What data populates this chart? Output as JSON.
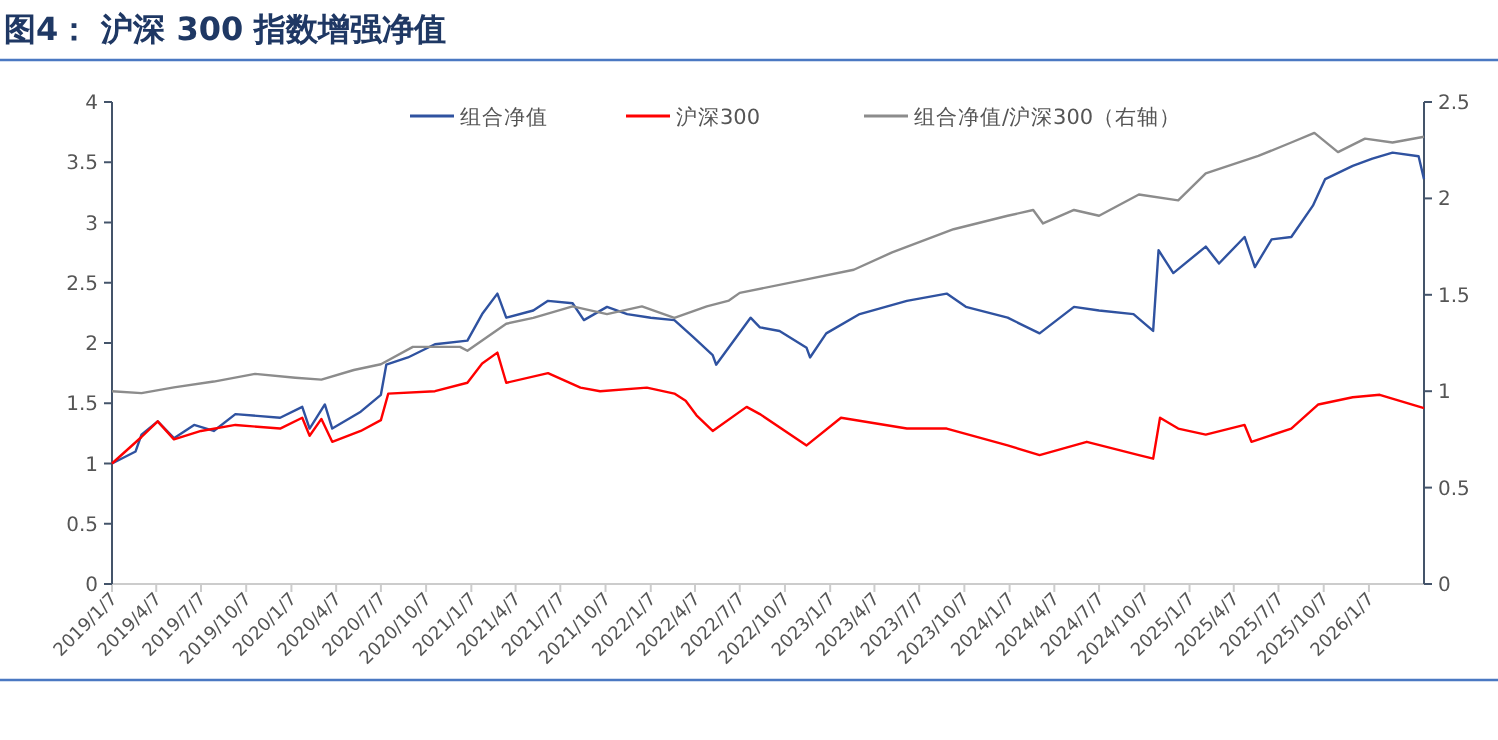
{
  "chart_data": {
    "type": "line",
    "title": "图4： 沪深 300 指数增强净值",
    "legend": "top",
    "grid": false,
    "xlim": [
      "2019-01-07",
      "2026-04-29"
    ],
    "xticks": [
      {
        "value": "2019-01-07",
        "label": "2019/1/7"
      },
      {
        "value": "2019-04-07",
        "label": "2019/4/7"
      },
      {
        "value": "2019-07-07",
        "label": "2019/7/7"
      },
      {
        "value": "2019-10-07",
        "label": "2019/10/7"
      },
      {
        "value": "2020-01-07",
        "label": "2020/1/7"
      },
      {
        "value": "2020-04-07",
        "label": "2020/4/7"
      },
      {
        "value": "2020-07-07",
        "label": "2020/7/7"
      },
      {
        "value": "2020-10-07",
        "label": "2020/10/7"
      },
      {
        "value": "2021-01-07",
        "label": "2021/1/7"
      },
      {
        "value": "2021-04-07",
        "label": "2021/4/7"
      },
      {
        "value": "2021-07-07",
        "label": "2021/7/7"
      },
      {
        "value": "2021-10-07",
        "label": "2021/10/7"
      },
      {
        "value": "2022-01-07",
        "label": "2022/1/7"
      },
      {
        "value": "2022-04-07",
        "label": "2022/4/7"
      },
      {
        "value": "2022-07-07",
        "label": "2022/7/7"
      },
      {
        "value": "2022-10-07",
        "label": "2022/10/7"
      },
      {
        "value": "2023-01-07",
        "label": "2023/1/7"
      },
      {
        "value": "2023-04-07",
        "label": "2023/4/7"
      },
      {
        "value": "2023-07-07",
        "label": "2023/7/7"
      },
      {
        "value": "2023-10-07",
        "label": "2023/10/7"
      },
      {
        "value": "2024-01-07",
        "label": "2024/1/7"
      },
      {
        "value": "2024-04-07",
        "label": "2024/4/7"
      },
      {
        "value": "2024-07-07",
        "label": "2024/7/7"
      },
      {
        "value": "2024-10-07",
        "label": "2024/10/7"
      },
      {
        "value": "2025-01-07",
        "label": "2025/1/7"
      },
      {
        "value": "2025-04-07",
        "label": "2025/4/7"
      },
      {
        "value": "2025-07-07",
        "label": "2025/7/7"
      },
      {
        "value": "2025-10-07",
        "label": "2025/10/7"
      },
      {
        "value": "2026-01-07",
        "label": "2026/1/7"
      }
    ],
    "ylim": [
      0,
      4
    ],
    "yticks": [
      0,
      0.5,
      1,
      1.5,
      2,
      2.5,
      3,
      3.5,
      4
    ],
    "y2lim": [
      0,
      2.5
    ],
    "y2ticks": [
      0,
      0.5,
      1,
      1.5,
      2,
      2.5
    ],
    "series": [
      {
        "name": "组合净值",
        "color": "#2f52a0",
        "x": [
          "2019-01-07",
          "2019-02-24",
          "2019-03-08",
          "2019-04-10",
          "2019-05-13",
          "2019-06-23",
          "2019-08-02",
          "2019-09-15",
          "2019-12-15",
          "2020-01-29",
          "2020-02-13",
          "2020-03-15",
          "2020-03-30",
          "2020-05-27",
          "2020-07-07",
          "2020-07-18",
          "2020-08-31",
          "2020-10-25",
          "2020-12-30",
          "2021-01-29",
          "2021-03-01",
          "2021-03-19",
          "2021-05-13",
          "2021-06-12",
          "2021-08-01",
          "2021-08-24",
          "2021-10-10",
          "2021-11-20",
          "2022-01-07",
          "2022-02-24",
          "2022-04-03",
          "2022-05-13",
          "2022-05-20",
          "2022-07-29",
          "2022-08-17",
          "2022-09-26",
          "2022-11-20",
          "2022-11-27",
          "2022-12-30",
          "2023-03-08",
          "2023-06-12",
          "2023-09-01",
          "2023-10-10",
          "2024-01-03",
          "2024-03-08",
          "2024-05-17",
          "2024-07-07",
          "2024-09-15",
          "2024-10-25",
          "2024-11-05",
          "2024-12-05",
          "2025-02-09",
          "2025-03-08",
          "2025-04-29",
          "2025-05-20",
          "2025-06-23",
          "2025-08-02",
          "2025-09-15",
          "2025-10-10",
          "2025-12-05",
          "2026-01-14",
          "2026-02-24",
          "2026-04-18",
          "2026-04-29"
        ],
        "values": [
          1.0,
          1.1,
          1.24,
          1.35,
          1.21,
          1.32,
          1.27,
          1.41,
          1.38,
          1.47,
          1.29,
          1.49,
          1.29,
          1.43,
          1.57,
          1.82,
          1.88,
          1.99,
          2.02,
          2.24,
          2.41,
          2.21,
          2.27,
          2.35,
          2.33,
          2.19,
          2.3,
          2.24,
          2.21,
          2.19,
          2.05,
          1.9,
          1.82,
          2.21,
          2.13,
          2.1,
          1.96,
          1.88,
          2.08,
          2.24,
          2.35,
          2.41,
          2.3,
          2.21,
          2.08,
          2.3,
          2.27,
          2.24,
          2.1,
          2.77,
          2.58,
          2.8,
          2.66,
          2.88,
          2.63,
          2.86,
          2.88,
          3.14,
          3.36,
          3.47,
          3.53,
          3.58,
          3.55,
          3.36
        ]
      },
      {
        "name": "沪深300",
        "color": "#ff0000",
        "x": [
          "2019-01-07",
          "2019-03-08",
          "2019-04-10",
          "2019-05-13",
          "2019-07-07",
          "2019-09-15",
          "2019-12-15",
          "2020-01-29",
          "2020-02-13",
          "2020-03-08",
          "2020-03-30",
          "2020-05-27",
          "2020-07-07",
          "2020-07-22",
          "2020-10-25",
          "2020-12-30",
          "2021-01-29",
          "2021-03-01",
          "2021-03-19",
          "2021-06-12",
          "2021-08-17",
          "2021-09-26",
          "2021-12-30",
          "2022-02-24",
          "2022-03-19",
          "2022-04-10",
          "2022-05-13",
          "2022-07-21",
          "2022-08-17",
          "2022-11-20",
          "2023-01-29",
          "2023-06-12",
          "2023-09-01",
          "2024-01-03",
          "2024-03-08",
          "2024-06-12",
          "2024-09-26",
          "2024-10-25",
          "2024-11-08",
          "2024-12-15",
          "2025-02-09",
          "2025-04-29",
          "2025-05-13",
          "2025-08-02",
          "2025-09-26",
          "2025-12-05",
          "2026-01-29",
          "2026-04-29"
        ],
        "values": [
          1.0,
          1.22,
          1.35,
          1.2,
          1.27,
          1.32,
          1.29,
          1.38,
          1.23,
          1.37,
          1.18,
          1.27,
          1.36,
          1.58,
          1.6,
          1.67,
          1.83,
          1.92,
          1.67,
          1.75,
          1.63,
          1.6,
          1.63,
          1.58,
          1.52,
          1.4,
          1.27,
          1.47,
          1.41,
          1.15,
          1.38,
          1.29,
          1.29,
          1.15,
          1.07,
          1.18,
          1.07,
          1.04,
          1.38,
          1.29,
          1.24,
          1.32,
          1.18,
          1.29,
          1.49,
          1.55,
          1.57,
          1.46
        ]
      },
      {
        "name": "组合净值/沪深300（右轴）",
        "color": "#8c8c8c",
        "axis": "y2",
        "x": [
          "2019-01-07",
          "2019-03-08",
          "2019-05-13",
          "2019-08-02",
          "2019-10-25",
          "2020-01-15",
          "2020-03-08",
          "2020-05-13",
          "2020-07-07",
          "2020-09-10",
          "2020-12-15",
          "2020-12-30",
          "2021-03-19",
          "2021-05-13",
          "2021-08-01",
          "2021-10-10",
          "2021-12-20",
          "2022-02-24",
          "2022-05-01",
          "2022-06-15",
          "2022-07-07",
          "2022-11-20",
          "2023-02-24",
          "2023-05-13",
          "2023-09-15",
          "2024-01-03",
          "2024-02-24",
          "2024-03-15",
          "2024-05-17",
          "2024-07-07",
          "2024-09-26",
          "2024-12-15",
          "2025-02-09",
          "2025-05-27",
          "2025-08-02",
          "2025-09-18",
          "2025-11-05",
          "2025-12-30",
          "2026-02-24",
          "2026-04-29"
        ],
        "values": [
          1.0,
          0.99,
          1.02,
          1.05,
          1.09,
          1.07,
          1.06,
          1.11,
          1.14,
          1.23,
          1.23,
          1.21,
          1.35,
          1.38,
          1.44,
          1.4,
          1.44,
          1.38,
          1.44,
          1.47,
          1.51,
          1.58,
          1.63,
          1.72,
          1.84,
          1.91,
          1.94,
          1.87,
          1.94,
          1.91,
          2.02,
          1.99,
          2.13,
          2.22,
          2.29,
          2.34,
          2.24,
          2.31,
          2.29,
          2.32
        ]
      }
    ]
  }
}
